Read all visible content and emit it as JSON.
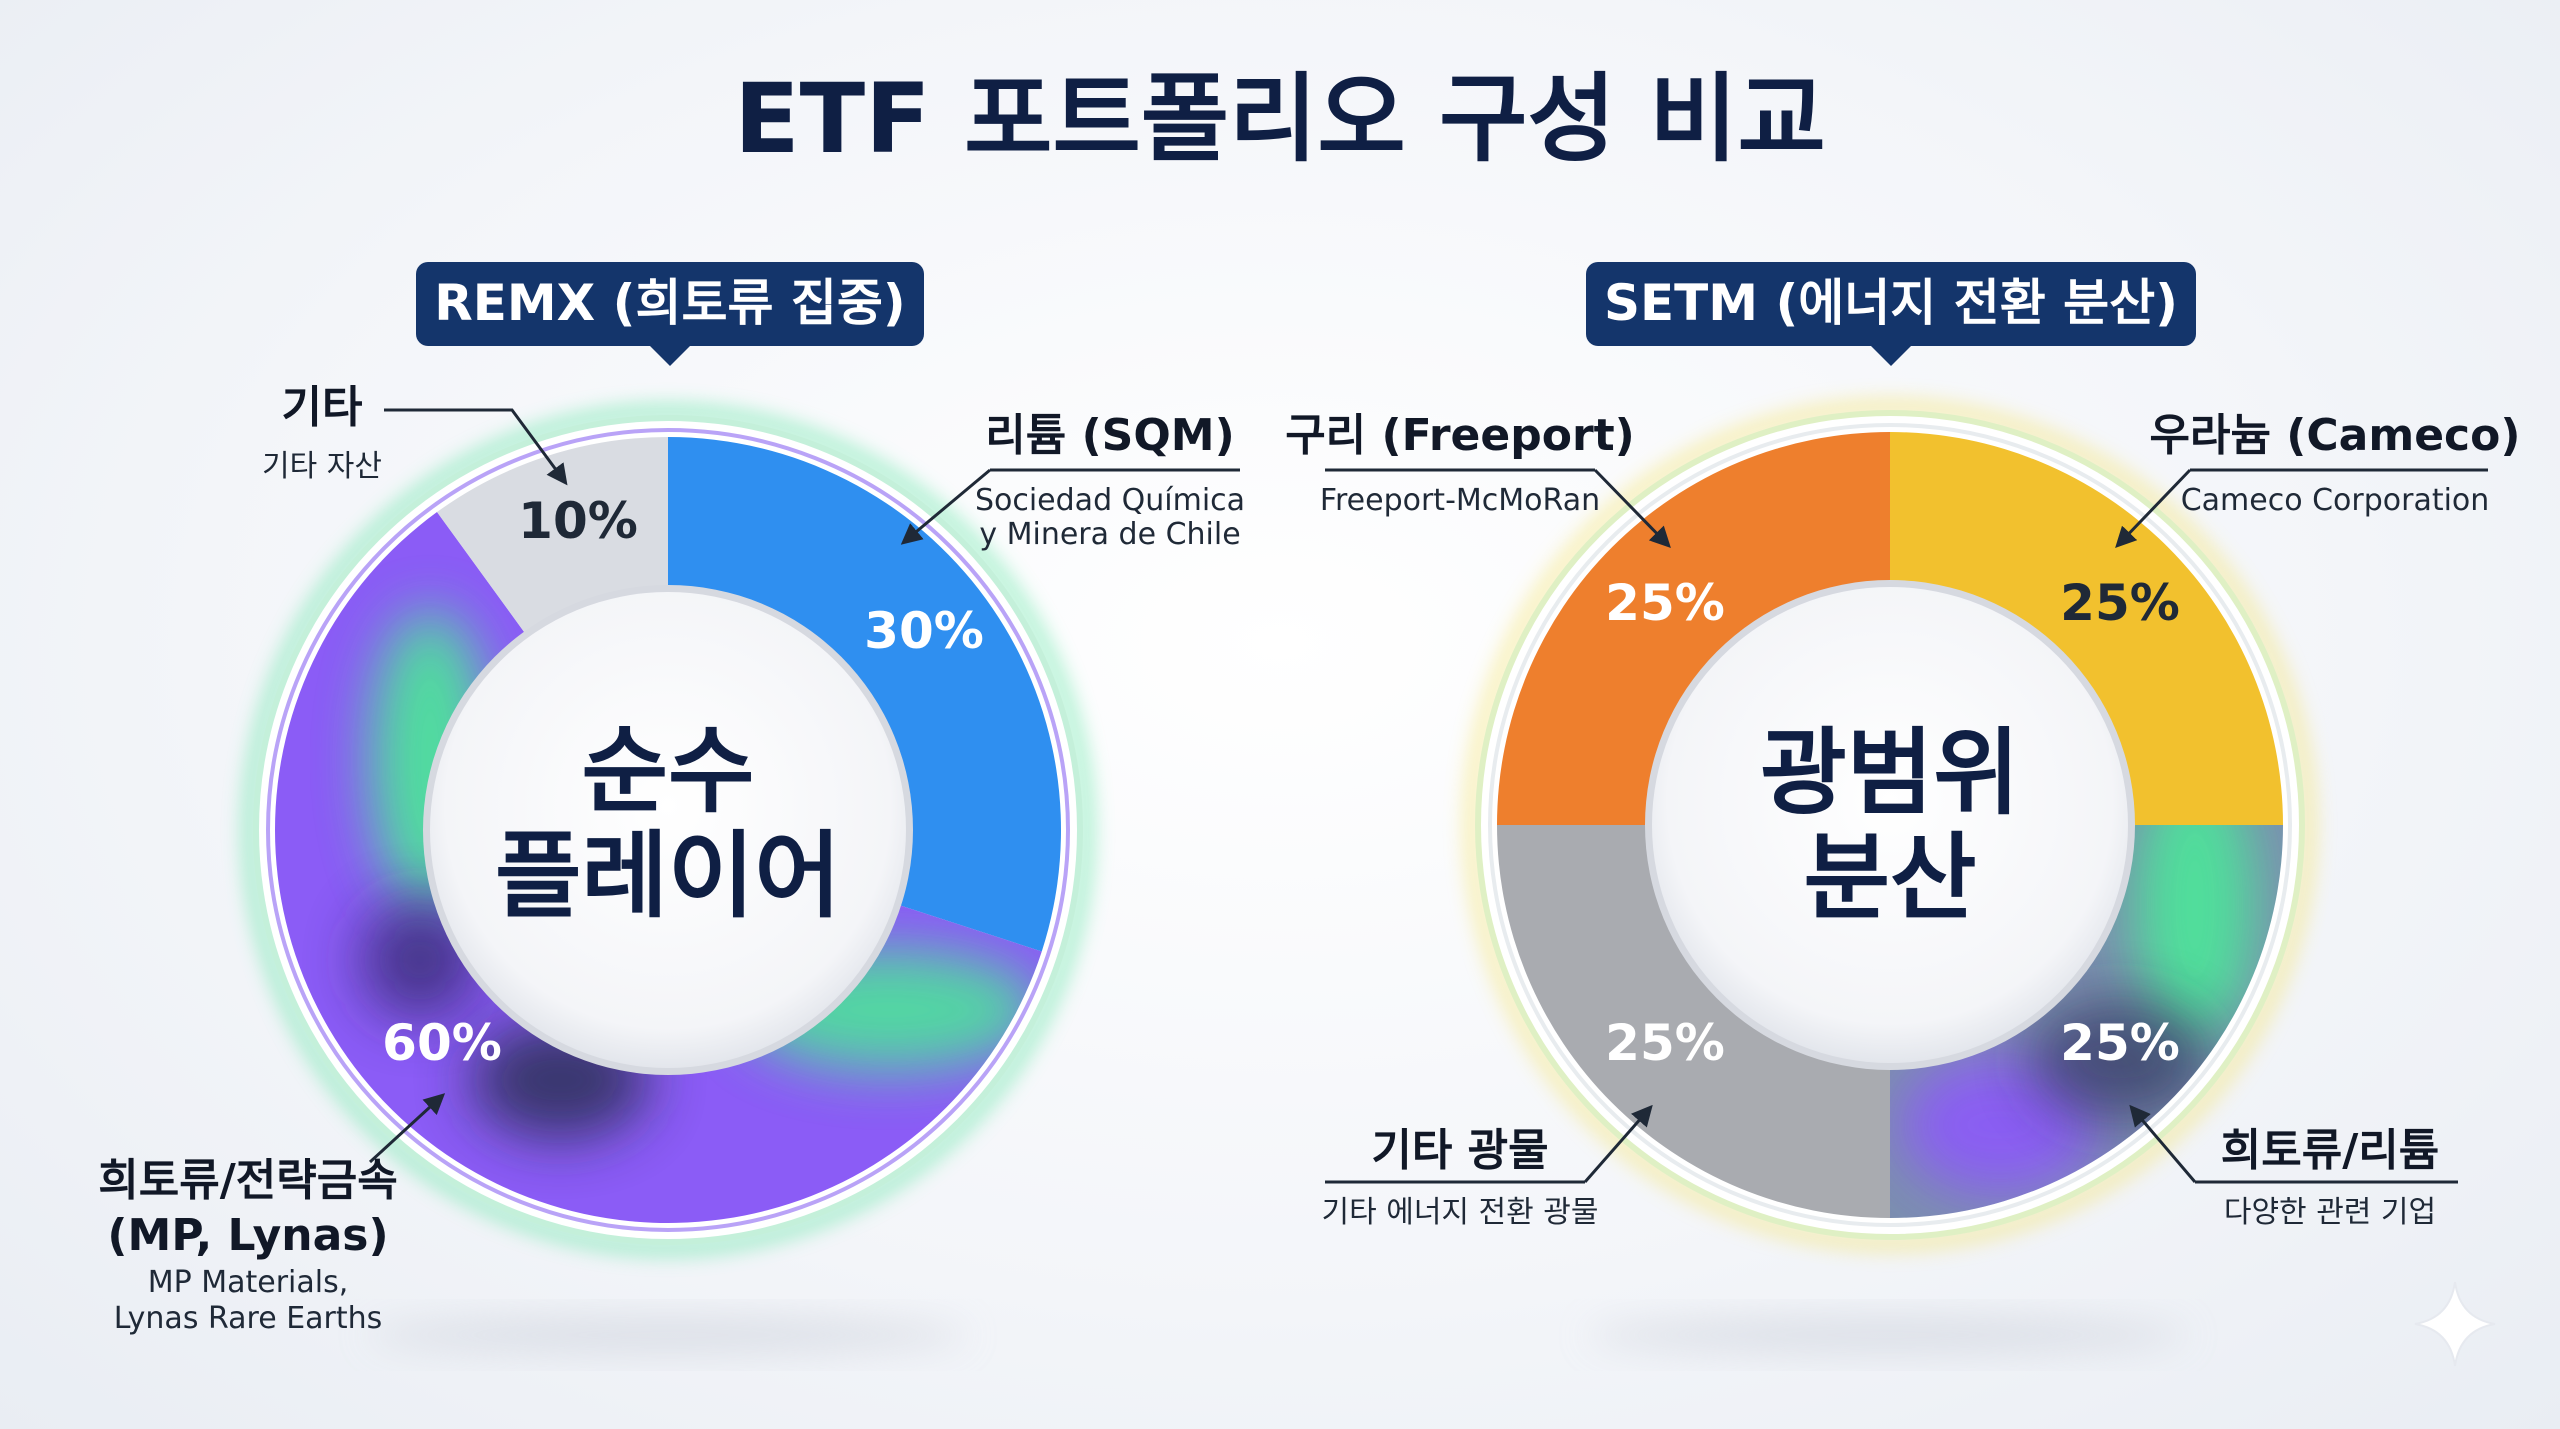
{
  "title": "ETF 포트폴리오 구성 비교",
  "chart_data": [
    {
      "type": "pie",
      "subtype": "donut",
      "title": "REMX (희토류 집중)",
      "center_label": [
        "순수",
        "플레이어"
      ],
      "slices": [
        {
          "label": "리튬 (SQM)",
          "sublabel": [
            "Sociedad Química",
            "y Minera de Chile"
          ],
          "value": 30,
          "value_label": "30%",
          "color": "#2f8ff0"
        },
        {
          "label": "희토류/전략금속 (MP, Lynas)",
          "label_lines": [
            "희토류/전략금속",
            "(MP, Lynas)"
          ],
          "sublabel": [
            "MP Materials,",
            "Lynas Rare Earths"
          ],
          "value": 60,
          "value_label": "60%",
          "color": "#8b5cf6",
          "accent_color": "#4ee39a"
        },
        {
          "label": "기타",
          "sublabel": [
            "기타 자산"
          ],
          "value": 10,
          "value_label": "10%",
          "color": "#d9dce2"
        }
      ]
    },
    {
      "type": "pie",
      "subtype": "donut",
      "title": "SETM (에너지 전환 분산)",
      "center_label": [
        "광범위",
        "분산"
      ],
      "slices": [
        {
          "label": "우라늄 (Cameco)",
          "sublabel": [
            "Cameco Corporation"
          ],
          "value": 25,
          "value_label": "25%",
          "color": "#f2c12e"
        },
        {
          "label": "희토류/리튬",
          "sublabel": [
            "다양한 관련 기업"
          ],
          "value": 25,
          "value_label": "25%",
          "color": "#7c8fb0",
          "accent_color": "#4ee39a"
        },
        {
          "label": "기타 광물",
          "sublabel": [
            "기타 에너지 전환 광물"
          ],
          "value": 25,
          "value_label": "25%",
          "color": "#a9abb0"
        },
        {
          "label": "구리 (Freeport)",
          "sublabel": [
            "Freeport-McMoRan"
          ],
          "value": 25,
          "value_label": "25%",
          "color": "#ee7f2d"
        }
      ]
    }
  ],
  "colors": {
    "title": "#0f1f44",
    "badge": "#14356b",
    "remx_ring": "#4ee39a",
    "setm_ring": "#f5e36b"
  }
}
